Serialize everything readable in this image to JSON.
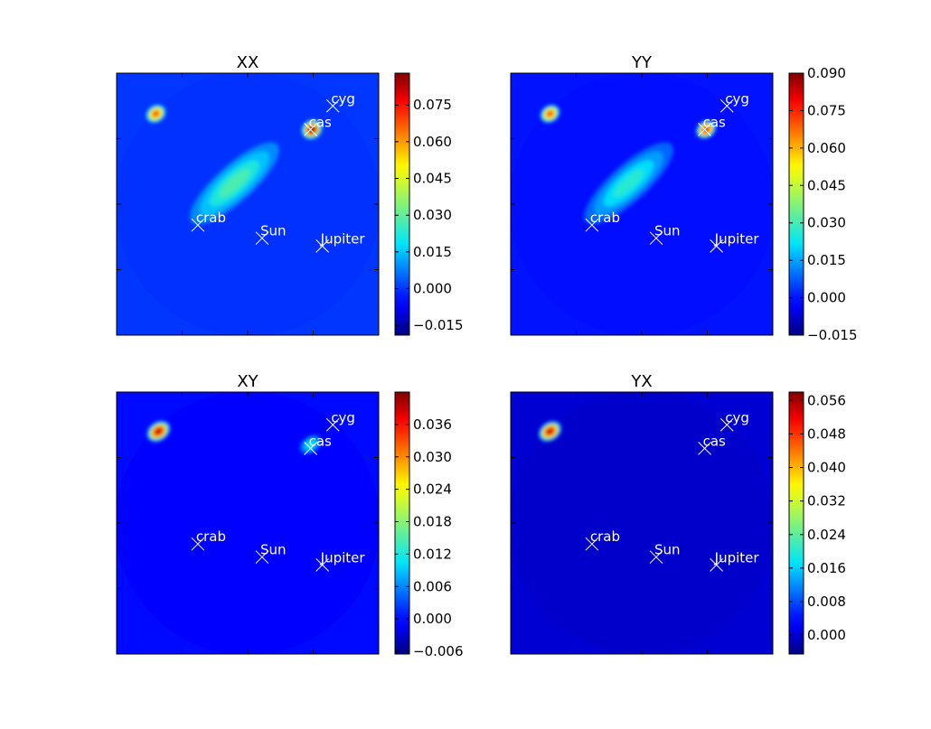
{
  "chart_data": [
    {
      "type": "heatmap",
      "title": "XX",
      "colormap": "jet",
      "vmin": -0.019,
      "vmax": 0.088,
      "colorbar_ticks": [
        "−0.015",
        "0.000",
        "0.015",
        "0.030",
        "0.045",
        "0.060",
        "0.075"
      ],
      "colorbar_values": [
        -0.015,
        0.0,
        0.015,
        0.03,
        0.045,
        0.06,
        0.075
      ],
      "features": [
        {
          "kind": "hot-spot",
          "value": 0.088
        },
        {
          "kind": "hot-spot",
          "value": 0.07
        },
        {
          "kind": "galactic-plane",
          "value": 0.028
        }
      ],
      "sources": [
        "cyg",
        "cas",
        "crab",
        "Sun",
        "Jupiter"
      ]
    },
    {
      "type": "heatmap",
      "title": "YY",
      "colormap": "jet",
      "vmin": -0.015,
      "vmax": 0.09,
      "colorbar_ticks": [
        "−0.015",
        "0.000",
        "0.015",
        "0.030",
        "0.045",
        "0.060",
        "0.075",
        "0.090"
      ],
      "colorbar_values": [
        -0.015,
        0.0,
        0.015,
        0.03,
        0.045,
        0.06,
        0.075,
        0.09
      ],
      "features": [
        {
          "kind": "hot-spot",
          "value": 0.08
        },
        {
          "kind": "hot-spot",
          "value": 0.072
        },
        {
          "kind": "galactic-plane",
          "value": 0.027
        }
      ],
      "sources": [
        "cyg",
        "cas",
        "crab",
        "Sun",
        "Jupiter"
      ]
    },
    {
      "type": "heatmap",
      "title": "XY",
      "colormap": "jet",
      "vmin": -0.0065,
      "vmax": 0.042,
      "colorbar_ticks": [
        "−0.006",
        "0.000",
        "0.006",
        "0.012",
        "0.018",
        "0.024",
        "0.030",
        "0.036"
      ],
      "colorbar_values": [
        -0.006,
        0.0,
        0.006,
        0.012,
        0.018,
        0.024,
        0.03,
        0.036
      ],
      "features": [
        {
          "kind": "hot-spot",
          "value": 0.04
        },
        {
          "kind": "hot-spot",
          "value": 0.011
        }
      ],
      "sources": [
        "cyg",
        "cas",
        "crab",
        "Sun",
        "Jupiter"
      ]
    },
    {
      "type": "heatmap",
      "title": "YX",
      "colormap": "jet",
      "vmin": -0.0045,
      "vmax": 0.058,
      "colorbar_ticks": [
        "0.000",
        "0.008",
        "0.016",
        "0.024",
        "0.032",
        "0.040",
        "0.048",
        "0.056"
      ],
      "colorbar_values": [
        0.0,
        0.008,
        0.016,
        0.024,
        0.032,
        0.04,
        0.048,
        0.056
      ],
      "features": [
        {
          "kind": "hot-spot",
          "value": 0.055
        }
      ],
      "sources": [
        "cyg",
        "cas",
        "crab",
        "Sun",
        "Jupiter"
      ]
    }
  ]
}
